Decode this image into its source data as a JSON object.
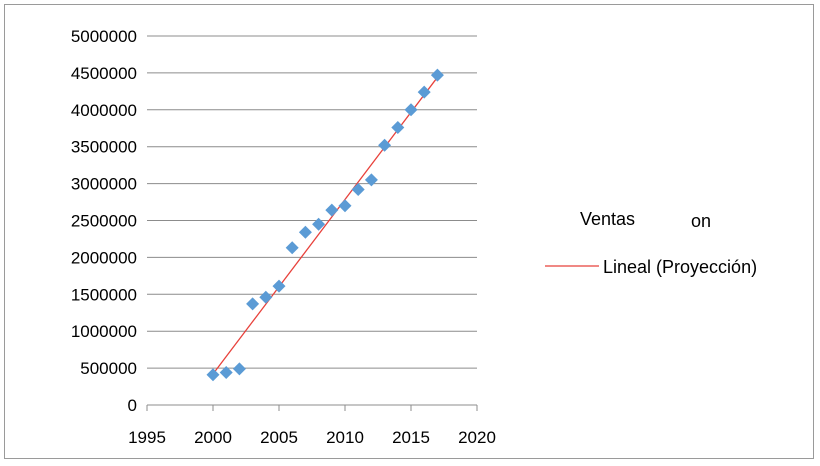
{
  "chart_data": {
    "type": "scatter",
    "title": "",
    "xlabel": "",
    "ylabel": "",
    "xlim": [
      1995,
      2020
    ],
    "ylim": [
      0,
      5000000
    ],
    "x_ticks": [
      1995,
      2000,
      2005,
      2010,
      2015,
      2020
    ],
    "y_ticks": [
      0,
      500000,
      1000000,
      1500000,
      2000000,
      2500000,
      3000000,
      3500000,
      4000000,
      4500000,
      5000000
    ],
    "grid": "horizontal",
    "legend_position": "right",
    "series": [
      {
        "name": "Ventas",
        "kind": "scatter",
        "marker": "diamond",
        "color": "#5B9BD5",
        "x": [
          2000,
          2001,
          2002,
          2003,
          2004,
          2005,
          2006,
          2007,
          2008,
          2009,
          2010,
          2011,
          2012,
          2013,
          2014,
          2015,
          2016,
          2017
        ],
        "y": [
          410000,
          440000,
          490000,
          1370000,
          1460000,
          1610000,
          2130000,
          2340000,
          2450000,
          2640000,
          2700000,
          2920000,
          3050000,
          3520000,
          3760000,
          4000000,
          4240000,
          4470000
        ]
      },
      {
        "name": "Lineal (Proyección)",
        "kind": "trendline",
        "color": "#E8413B",
        "x": [
          2000,
          2017
        ],
        "y": [
          420000,
          4440000
        ]
      }
    ],
    "legend": {
      "ventas_label": "Ventas",
      "ventas_fragment": "on",
      "trend_label": "Lineal (Proyección)"
    }
  }
}
